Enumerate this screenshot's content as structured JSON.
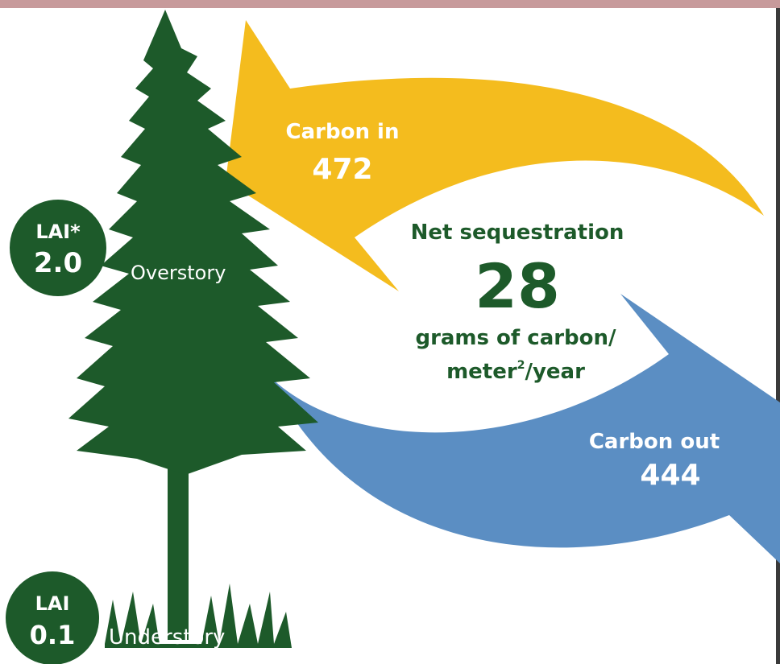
{
  "carbon_in": {
    "label": "Carbon in",
    "value": "472"
  },
  "net": {
    "label": "Net sequestration",
    "value": "28",
    "unit_line1": "grams of carbon/",
    "unit_line2_a": "meter",
    "unit_sup": "2",
    "unit_line2_b": "/year"
  },
  "carbon_out": {
    "label": "Carbon out",
    "value": "444"
  },
  "overstory": {
    "lai_label": "LAI*",
    "lai_value": "2.0",
    "label": "Overstory"
  },
  "understory": {
    "lai_label": "LAI",
    "lai_value": "0.1",
    "label": "Understory"
  }
}
